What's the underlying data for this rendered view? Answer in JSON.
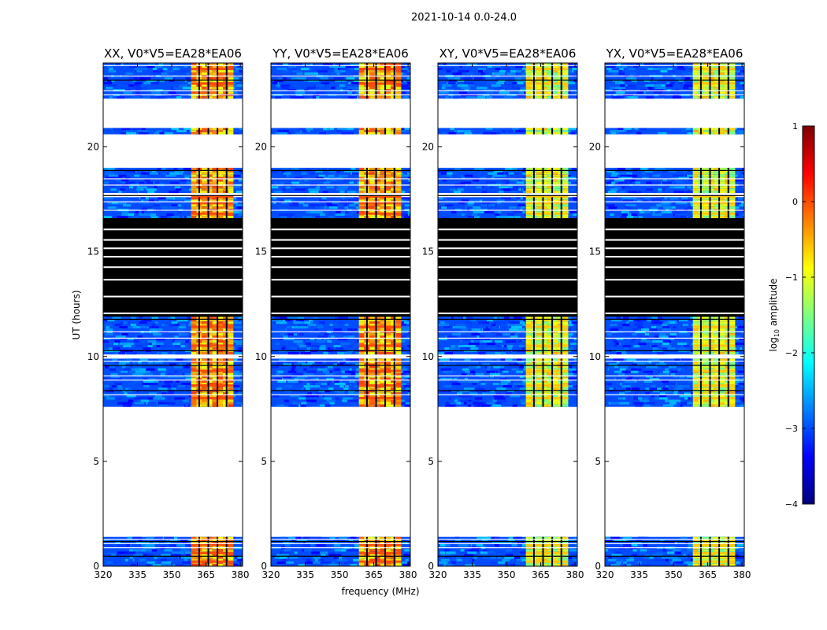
{
  "figure": {
    "suptitle": "2021-10-14 0.0-24.0",
    "xlabel": "frequency (MHz)",
    "ylabel": "UT (hours)"
  },
  "colorbar": {
    "label_pre": "log",
    "label_sub": "10",
    "label_post": " amplitude",
    "ticks": [
      "1",
      "0",
      "−1",
      "−2",
      "−3",
      "−4"
    ],
    "tick_values": [
      1,
      0,
      -1,
      -2,
      -3,
      -4
    ],
    "range": [
      -4,
      1
    ],
    "colormap": "jet",
    "colors": [
      "#00007f",
      "#0000ff",
      "#007fff",
      "#00ffff",
      "#7fff7f",
      "#ffff00",
      "#ff7f00",
      "#ff0000",
      "#7f0000"
    ]
  },
  "chart_data": [
    {
      "type": "heatmap",
      "title": "XX, V0*V5=EA28*EA06",
      "xlim": [
        320,
        381
      ],
      "ylim": [
        0,
        24
      ],
      "xticks": [
        320,
        335,
        350,
        365,
        380
      ],
      "yticks": [
        0,
        5,
        10,
        15,
        20
      ],
      "rfi_band_mhz": [
        358.5,
        377
      ],
      "rfi_level": "high"
    },
    {
      "type": "heatmap",
      "title": "YY, V0*V5=EA28*EA06",
      "xlim": [
        320,
        381
      ],
      "ylim": [
        0,
        24
      ],
      "xticks": [
        320,
        335,
        350,
        365,
        380
      ],
      "yticks": [
        0,
        5,
        10,
        15,
        20
      ],
      "rfi_band_mhz": [
        358.5,
        377
      ],
      "rfi_level": "high"
    },
    {
      "type": "heatmap",
      "title": "XY, V0*V5=EA28*EA06",
      "xlim": [
        320,
        381
      ],
      "ylim": [
        0,
        24
      ],
      "xticks": [
        320,
        335,
        350,
        365,
        380
      ],
      "yticks": [
        0,
        5,
        10,
        15,
        20
      ],
      "rfi_band_mhz": [
        358.5,
        377
      ],
      "rfi_level": "medium"
    },
    {
      "type": "heatmap",
      "title": "YX, V0*V5=EA28*EA06",
      "xlim": [
        320,
        381
      ],
      "ylim": [
        0,
        24
      ],
      "xticks": [
        320,
        335,
        350,
        365,
        380
      ],
      "yticks": [
        0,
        5,
        10,
        15,
        20
      ],
      "rfi_band_mhz": [
        358.5,
        377
      ],
      "rfi_level": "medium"
    }
  ],
  "time_segments": {
    "data": [
      [
        0.0,
        1.4
      ],
      [
        7.6,
        9.9
      ],
      [
        10.1,
        11.9
      ],
      [
        16.6,
        17.6
      ],
      [
        17.8,
        19.0
      ],
      [
        20.6,
        20.9
      ],
      [
        22.3,
        24.0
      ]
    ],
    "flagged": [
      [
        11.9,
        16.6
      ]
    ],
    "gaps": [
      [
        1.4,
        7.6
      ],
      [
        19.0,
        20.6
      ],
      [
        20.9,
        22.3
      ]
    ]
  },
  "channel_flags_mhz": [
    362,
    366,
    370,
    374
  ],
  "rfi_row_hours": [
    0.2,
    0.6,
    1.0,
    8.0,
    8.6,
    9.3,
    10.5,
    11.4,
    16.8,
    17.3,
    17.6,
    23.0,
    23.7
  ],
  "flag_row_hours": [
    0.5,
    0.9,
    1.1,
    1.2,
    1.3,
    8.2,
    8.4,
    8.9,
    9.1,
    9.6,
    9.8,
    10.0,
    10.3,
    10.9,
    11.2,
    11.8,
    17.0,
    17.4,
    17.7,
    18.2,
    18.5,
    18.9,
    22.5,
    22.7,
    23.2,
    23.4,
    23.9
  ]
}
